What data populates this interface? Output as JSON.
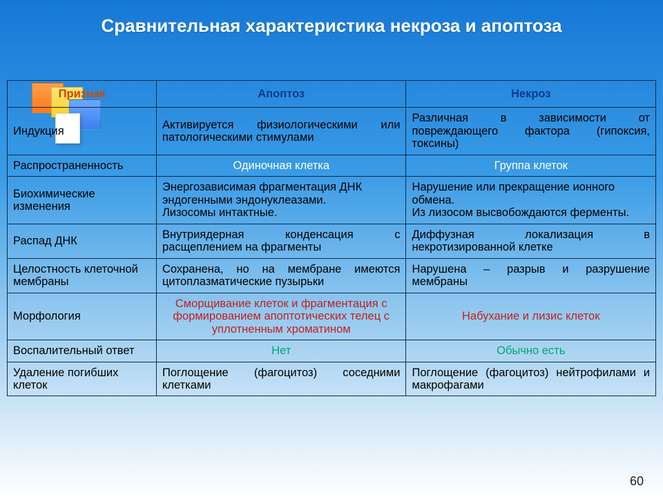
{
  "title": "Сравнительная характеристика некроза и апоптоза",
  "page_number": "60",
  "colors": {
    "title_color": "#ffffff",
    "header_text": "#0b3b8a",
    "header_sign_text": "#cc4a00",
    "border": "#0b2b4a",
    "white_text": "#ffffff",
    "red_text": "#c22020",
    "green_text": "#00a86b"
  },
  "table": {
    "headers": {
      "sign": "Признак",
      "apoptosis": "Апоптоз",
      "necrosis": "Некроз"
    },
    "rows": [
      {
        "sign": "Индукция",
        "apoptosis": "Активируется физиологическими или патологическими стимулами",
        "necrosis": "Различная в зависимости от повреждающего фактора (гипоксия, токсины)",
        "style": {
          "apoptosis_align": "justify",
          "necrosis_align": "justify"
        }
      },
      {
        "sign": "Распространенность",
        "apoptosis": "Одиночная клетка",
        "necrosis": "Группа клеток",
        "style": {
          "apoptosis_align": "center",
          "necrosis_align": "center",
          "apoptosis_color": "white",
          "necrosis_color": "white"
        }
      },
      {
        "sign": "Биохимические изменения",
        "apoptosis": "Энергозависимая фрагментация ДНК эндогенными эндонуклеазами.\nЛизосомы интактные.",
        "necrosis": "Нарушение или прекращение ионного обмена.\nИз лизосом высвобождаются ферменты.",
        "style": {
          "apoptosis_align": "left",
          "necrosis_align": "left"
        }
      },
      {
        "sign": "Распад ДНК",
        "apoptosis": "Внутриядерная конденсация с расщеплением на фрагменты",
        "necrosis": "Диффузная локализация в некротизированной клетке",
        "style": {
          "apoptosis_align": "justify",
          "necrosis_align": "justify"
        }
      },
      {
        "sign": "Целостность клеточной мембраны",
        "apoptosis": "Сохранена, но на мембране имеются цитоплазматические пузырьки",
        "necrosis": "Нарушена – разрыв и разрушение мембраны",
        "style": {
          "apoptosis_align": "justify",
          "necrosis_align": "justify"
        }
      },
      {
        "sign": "Морфология",
        "apoptosis": "Сморщивание клеток и фрагментация с формированием апоптотических телец с уплотненным хроматином",
        "necrosis": "Набухание и лизис клеток",
        "style": {
          "apoptosis_align": "center",
          "necrosis_align": "center",
          "apoptosis_color": "red",
          "necrosis_color": "red"
        }
      },
      {
        "sign": "Воспалительный ответ",
        "apoptosis": "Нет",
        "necrosis": "Обычно есть",
        "style": {
          "apoptosis_align": "center",
          "necrosis_align": "center",
          "apoptosis_color": "green",
          "necrosis_color": "green"
        }
      },
      {
        "sign": "Удаление погибших клеток",
        "apoptosis": "Поглощение (фагоцитоз) соседними клетками",
        "necrosis": "Поглощение (фагоцитоз) нейтрофилами и макрофагами",
        "style": {
          "apoptosis_align": "justify",
          "necrosis_align": "justify"
        }
      }
    ]
  }
}
